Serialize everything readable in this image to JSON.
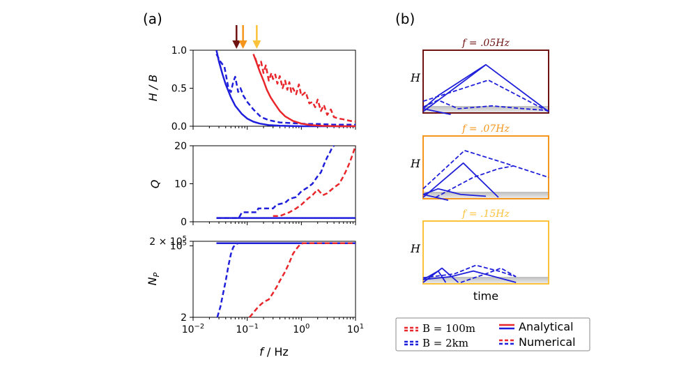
{
  "colors": {
    "red": "#e8262b",
    "blue": "#1f1fdb",
    "arrow_dark": "#6e1212",
    "arrow_orange": "#f5951c",
    "arrow_yellow": "#fcc23a",
    "frame_a": "#6e1212",
    "frame_b": "#f5951c",
    "frame_c": "#fcc23a"
  },
  "panel_labels": {
    "a": "(a)",
    "b": "(b)"
  },
  "legend": {
    "entries": [
      {
        "label": "B = 100m",
        "color": "red",
        "style": "dashed"
      },
      {
        "label": "B = 2km",
        "color": "blue",
        "style": "dashed"
      },
      {
        "label": "Analytical",
        "color": "blue",
        "style": "solid",
        "red_too": true
      },
      {
        "label": "Numerical",
        "color": "blue",
        "style": "dashed",
        "red_too": false
      }
    ]
  },
  "chart_data": [
    {
      "type": "line",
      "id": "hb",
      "ylabel": "H / B",
      "xscale": "log",
      "xlim": [
        0.01,
        10
      ],
      "ylim": [
        0,
        1
      ],
      "yticks": [
        "0.0",
        "0.5",
        "1.0"
      ],
      "arrows_at_f": [
        0.05,
        0.07,
        0.15
      ],
      "series": [
        {
          "color": "blue",
          "style": "solid",
          "x": [
            0.027,
            0.03,
            0.035,
            0.04,
            0.05,
            0.06,
            0.08,
            0.1,
            0.13,
            0.17,
            0.25,
            0.4,
            0.7,
            1.0,
            10
          ],
          "y": [
            1.0,
            0.85,
            0.68,
            0.55,
            0.38,
            0.27,
            0.16,
            0.1,
            0.06,
            0.035,
            0.015,
            0.007,
            0.003,
            0.0,
            0.0
          ]
        },
        {
          "color": "blue",
          "style": "dashed",
          "x": [
            0.027,
            0.032,
            0.038,
            0.045,
            0.05,
            0.055,
            0.06,
            0.068,
            0.075,
            0.085,
            0.1,
            0.13,
            0.18,
            0.25,
            0.4,
            0.7,
            1.2,
            2.0,
            4.0,
            10
          ],
          "y": [
            0.95,
            0.85,
            0.78,
            0.5,
            0.45,
            0.58,
            0.65,
            0.45,
            0.5,
            0.4,
            0.32,
            0.22,
            0.12,
            0.08,
            0.05,
            0.04,
            0.03,
            0.03,
            0.02,
            0.02
          ]
        },
        {
          "color": "red",
          "style": "solid",
          "x": [
            0.13,
            0.15,
            0.17,
            0.2,
            0.23,
            0.27,
            0.32,
            0.4,
            0.5,
            0.7,
            1.0,
            1.5,
            2.5,
            5.0,
            10
          ],
          "y": [
            0.95,
            0.83,
            0.72,
            0.6,
            0.48,
            0.38,
            0.3,
            0.2,
            0.13,
            0.07,
            0.035,
            0.015,
            0.005,
            0.0,
            0.0
          ]
        },
        {
          "color": "red",
          "style": "dashed",
          "x": [
            0.14,
            0.16,
            0.18,
            0.2,
            0.22,
            0.25,
            0.28,
            0.3,
            0.33,
            0.36,
            0.4,
            0.45,
            0.5,
            0.55,
            0.6,
            0.65,
            0.7,
            0.8,
            0.9,
            1.0,
            1.2,
            1.4,
            1.6,
            1.8,
            2.0,
            2.3,
            2.6,
            3.0,
            3.5,
            4.0,
            5.0,
            6.0,
            8.0,
            10
          ],
          "y": [
            0.9,
            0.78,
            0.85,
            0.7,
            0.8,
            0.6,
            0.7,
            0.62,
            0.68,
            0.56,
            0.66,
            0.5,
            0.6,
            0.48,
            0.58,
            0.45,
            0.5,
            0.42,
            0.55,
            0.4,
            0.45,
            0.3,
            0.32,
            0.25,
            0.35,
            0.2,
            0.28,
            0.15,
            0.22,
            0.12,
            0.1,
            0.09,
            0.07,
            0.06
          ]
        }
      ]
    },
    {
      "type": "line",
      "id": "q",
      "ylabel": "Q",
      "xscale": "log",
      "xlim": [
        0.01,
        10
      ],
      "ylim": [
        0,
        20
      ],
      "yticks": [
        "0",
        "10",
        "20"
      ],
      "series": [
        {
          "color": "blue",
          "style": "solid",
          "x": [
            0.027,
            10
          ],
          "y": [
            1,
            1
          ]
        },
        {
          "color": "blue",
          "style": "dashed",
          "x": [
            0.027,
            0.07,
            0.08,
            0.15,
            0.16,
            0.3,
            0.35,
            0.5,
            0.6,
            0.8,
            1.0,
            1.3,
            1.6,
            2.0,
            2.3,
            2.6,
            3.0,
            3.3,
            3.7,
            4.0
          ],
          "y": [
            1,
            1,
            2.5,
            2.5,
            3.5,
            3.5,
            4.5,
            5,
            6,
            6.5,
            8,
            9,
            10,
            12,
            13,
            15,
            17,
            18,
            19.5,
            20
          ]
        },
        {
          "color": "red",
          "style": "dashed",
          "x": [
            0.3,
            0.4,
            0.6,
            0.8,
            1.0,
            1.3,
            1.6,
            2.0,
            2.5,
            3.0,
            4.0,
            5.0,
            6.0,
            7.0,
            8.0,
            9.0,
            10
          ],
          "y": [
            1.5,
            1.5,
            2.5,
            3.5,
            4.5,
            6,
            7,
            8.5,
            7,
            7.5,
            9,
            10,
            12,
            14,
            16,
            18,
            20
          ]
        }
      ]
    },
    {
      "type": "line",
      "id": "np",
      "ylabel": "N_P",
      "xlabel": "f / Hz",
      "xscale": "log",
      "xlim": [
        0.01,
        10
      ],
      "yscale": "log",
      "ylim": [
        2,
        200000
      ],
      "xticks": [
        0.01,
        0.1,
        1,
        10
      ],
      "series": [
        {
          "color": "blue",
          "style": "solid",
          "x": [
            0.027,
            10
          ],
          "y": [
            150000,
            150000
          ]
        },
        {
          "color": "blue",
          "style": "dashed",
          "x": [
            0.028,
            0.032,
            0.035,
            0.04,
            0.045,
            0.05,
            0.055,
            0.06,
            0.065,
            0.07,
            10
          ],
          "y": [
            2,
            10,
            50,
            500,
            5000,
            30000,
            80000,
            120000,
            140000,
            150000,
            150000
          ]
        },
        {
          "color": "red",
          "style": "dashed",
          "x": [
            0.11,
            0.13,
            0.16,
            0.2,
            0.25,
            0.3,
            0.35,
            0.4,
            0.5,
            0.6,
            0.7,
            0.8,
            0.9,
            1.0,
            1.1,
            10
          ],
          "y": [
            2,
            4,
            10,
            20,
            30,
            80,
            200,
            500,
            2000,
            8000,
            30000,
            60000,
            100000,
            140000,
            150000,
            150000
          ]
        }
      ]
    }
  ],
  "schematics": [
    {
      "title": "f = .05Hz",
      "ylabel": "H",
      "frame_color": "frame_a",
      "solid": [
        [
          0.0,
          0.0
        ],
        [
          0.5,
          0.82
        ],
        [
          1.0,
          0.0
        ]
      ],
      "solid_curve_a": [
        [
          0.0,
          0.05
        ],
        [
          0.12,
          0.28
        ],
        [
          0.5,
          0.82
        ]
      ],
      "solid_low": [
        [
          0.0,
          0.05
        ],
        [
          0.22,
          -0.05
        ]
      ],
      "dashed_upper": [
        [
          0.0,
          0.18
        ],
        [
          0.52,
          0.55
        ],
        [
          1.0,
          0.0
        ]
      ],
      "dashed_mid": [
        [
          0.0,
          0.08
        ],
        [
          0.12,
          0.2
        ],
        [
          0.28,
          0.05
        ],
        [
          0.55,
          0.1
        ],
        [
          0.8,
          0.05
        ],
        [
          1.0,
          0.02
        ]
      ]
    },
    {
      "title": "f = .07Hz",
      "ylabel": "H",
      "frame_color": "frame_b",
      "solid": [
        [
          0.0,
          0.0
        ],
        [
          0.32,
          0.6
        ],
        [
          0.6,
          0.0
        ]
      ],
      "solid_curve_a": [
        [
          0.0,
          0.05
        ],
        [
          0.12,
          0.15
        ],
        [
          0.3,
          0.05
        ],
        [
          0.5,
          0.02
        ]
      ],
      "solid_low": [
        [
          0.0,
          0.05
        ],
        [
          0.2,
          -0.05
        ]
      ],
      "dashed_upper": [
        [
          0.0,
          0.15
        ],
        [
          0.33,
          0.82
        ],
        [
          0.65,
          0.6
        ],
        [
          1.0,
          0.35
        ]
      ],
      "dashed_mid": [
        [
          0.1,
          0.0
        ],
        [
          0.4,
          0.35
        ],
        [
          0.6,
          0.5
        ],
        [
          0.72,
          0.55
        ]
      ]
    },
    {
      "title": "f = .15Hz",
      "ylabel": "H",
      "frame_color": "frame_c",
      "solid": [
        [
          0.0,
          0.0
        ],
        [
          0.15,
          0.25
        ],
        [
          0.28,
          0.0
        ]
      ],
      "solid_curve_a": [
        [
          0.0,
          0.05
        ],
        [
          0.22,
          0.1
        ],
        [
          0.4,
          0.2
        ],
        [
          0.74,
          0.0
        ]
      ],
      "solid_low": [
        [
          0.0,
          0.05
        ],
        [
          0.12,
          0.2
        ],
        [
          0.18,
          0.0
        ]
      ],
      "dashed_upper": [
        [
          0.0,
          0.08
        ],
        [
          0.25,
          0.15
        ],
        [
          0.42,
          0.3
        ],
        [
          0.6,
          0.2
        ],
        [
          0.74,
          0.1
        ]
      ],
      "dashed_mid": [
        [
          0.3,
          0.0
        ],
        [
          0.5,
          0.15
        ],
        [
          0.62,
          0.25
        ],
        [
          0.74,
          0.1
        ]
      ]
    }
  ],
  "schematic_xlabel": "time"
}
